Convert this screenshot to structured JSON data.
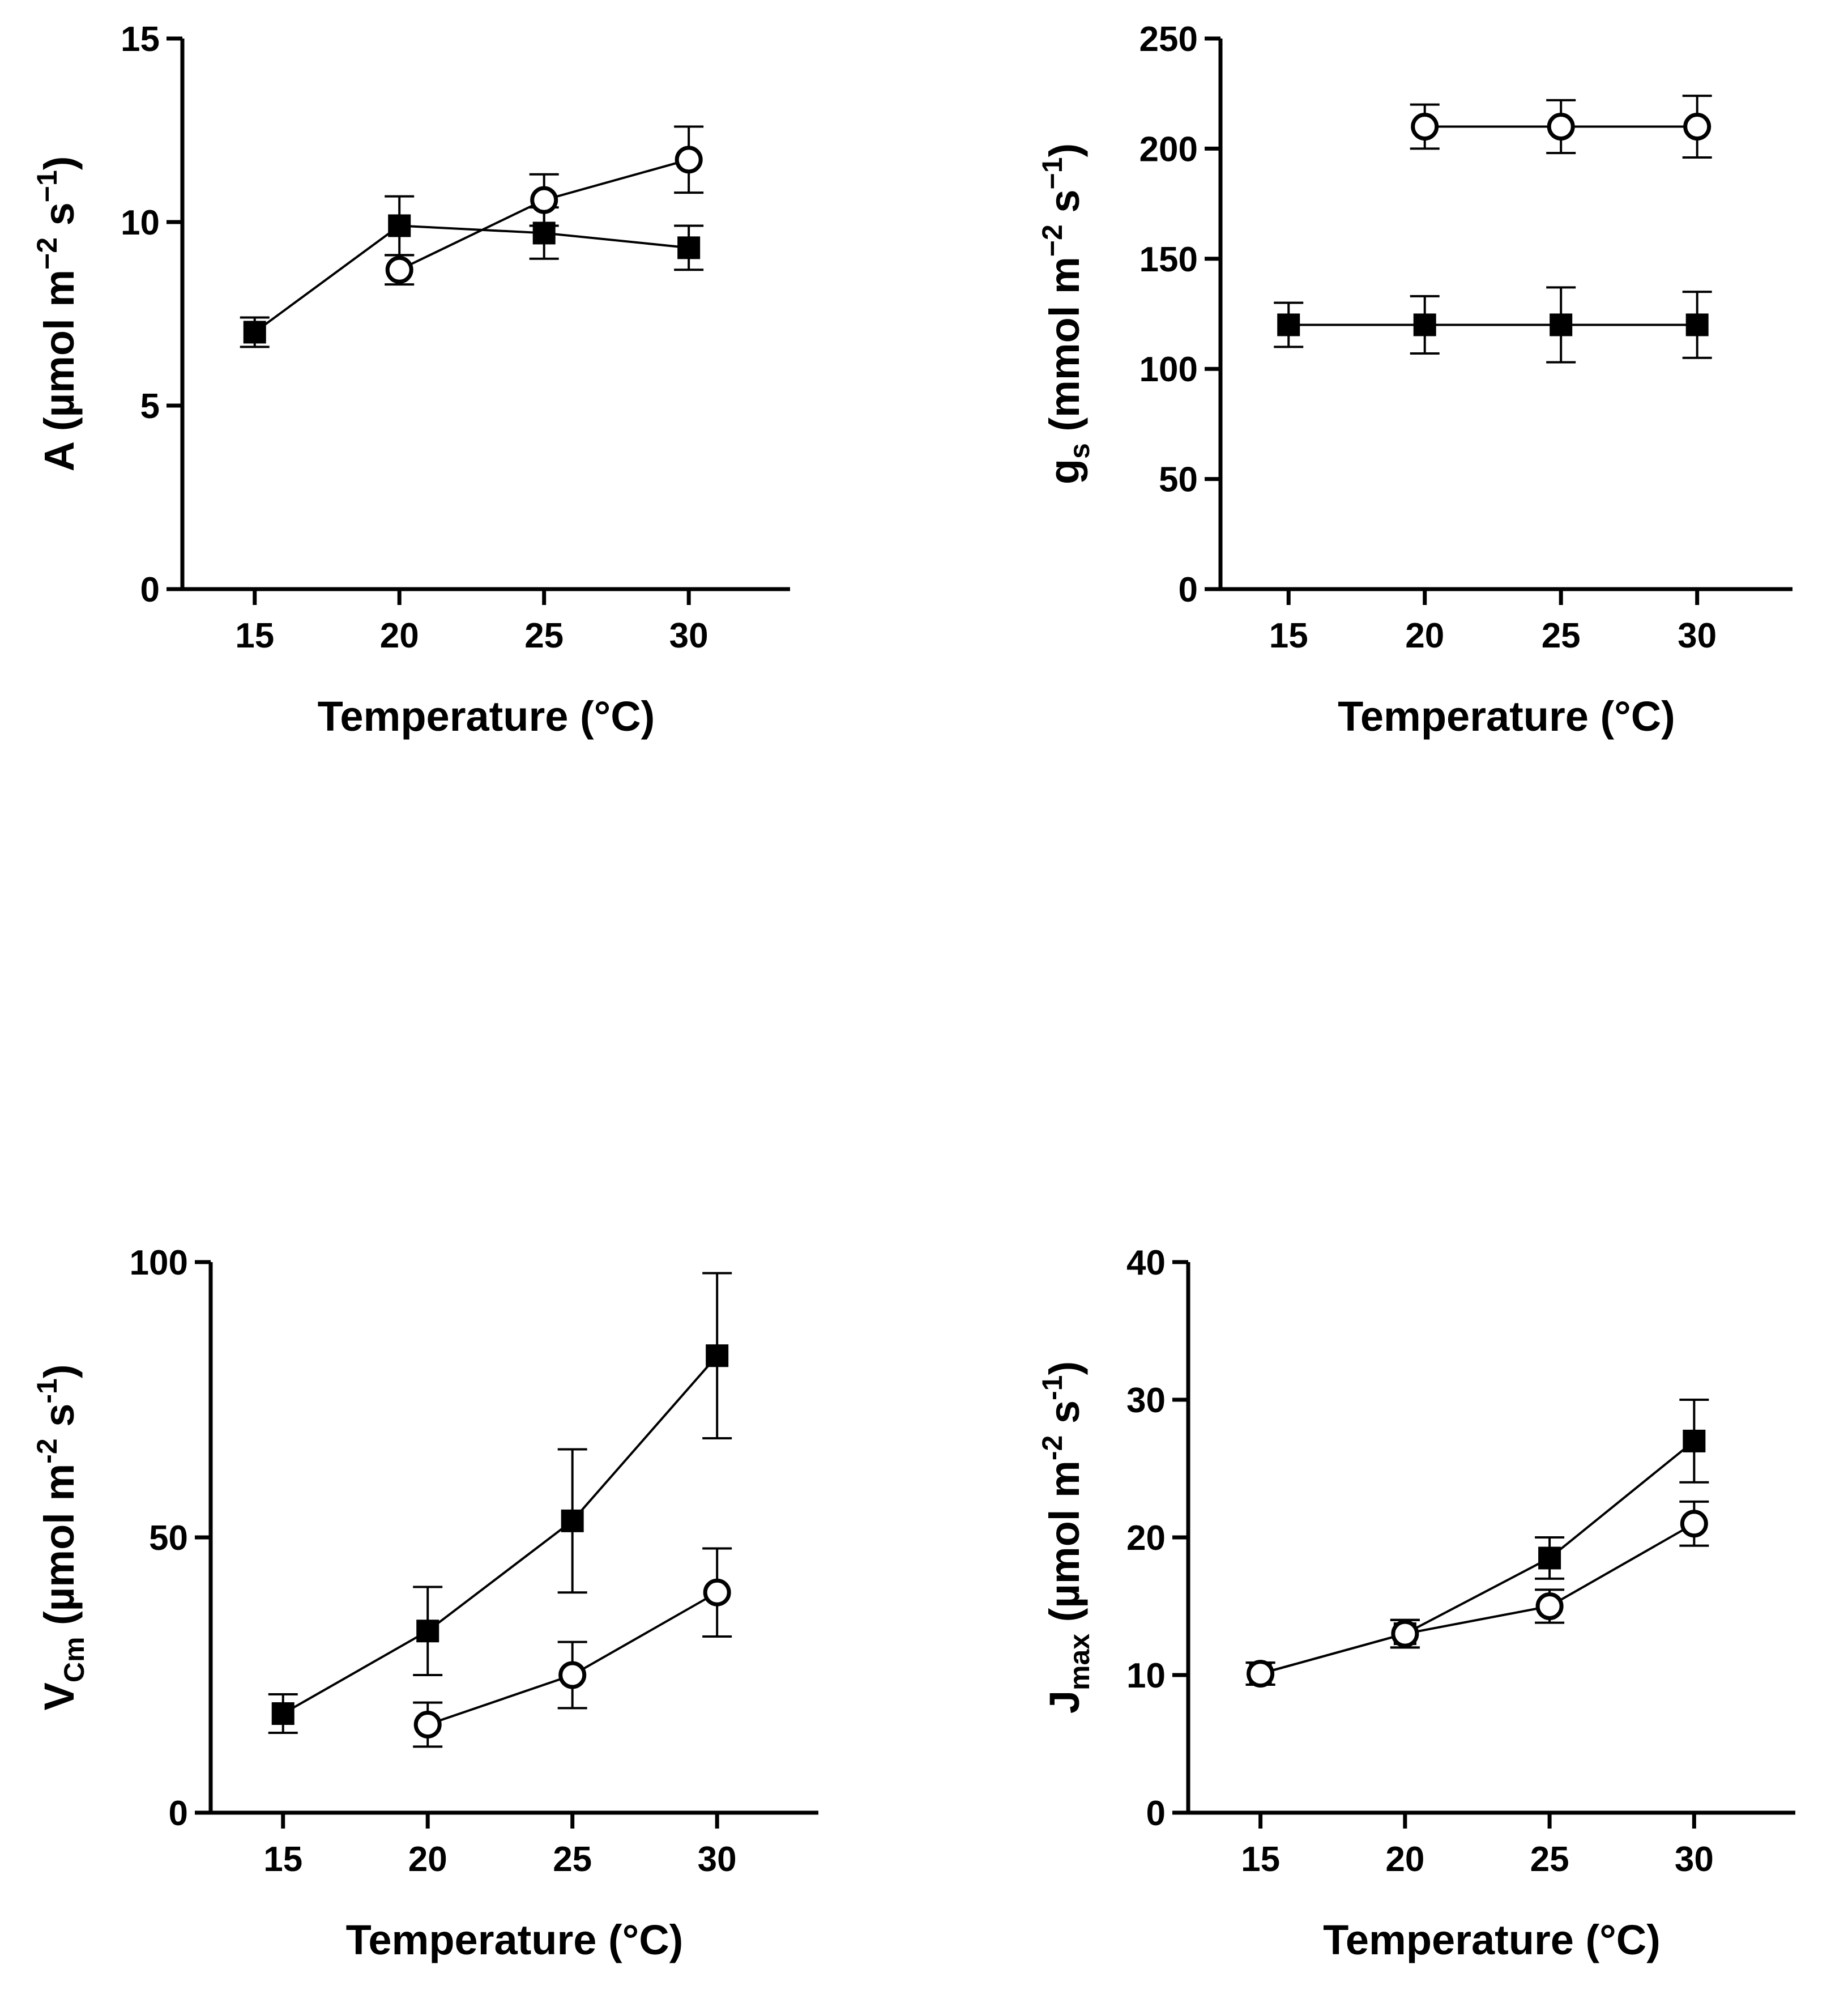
{
  "chart_data": [
    {
      "type": "scatter",
      "xlabel": "Temperature (°C)",
      "ylabel": "A (µmol m⁻² s⁻¹)",
      "ylabel_parts": [
        {
          "text": "A (µmol m",
          "style": "normal"
        },
        {
          "text": "−2",
          "style": "sup"
        },
        {
          "text": " s",
          "style": "normal"
        },
        {
          "text": "−1",
          "style": "sup"
        },
        {
          "text": ")",
          "style": "normal"
        }
      ],
      "xlim": [
        12.5,
        33.5
      ],
      "ylim": [
        0,
        15
      ],
      "xticks": [
        15,
        20,
        25,
        30
      ],
      "yticks": [
        0,
        5,
        10,
        15
      ],
      "series": [
        {
          "marker": "square-filled",
          "x": [
            15,
            20,
            25,
            30
          ],
          "y": [
            7.0,
            9.9,
            9.7,
            9.3
          ],
          "err": [
            0.4,
            0.8,
            0.7,
            0.6
          ]
        },
        {
          "marker": "circle-open",
          "x": [
            20,
            25,
            30
          ],
          "y": [
            8.7,
            10.6,
            11.7
          ],
          "err": [
            0.4,
            0.7,
            0.9
          ]
        }
      ]
    },
    {
      "type": "scatter",
      "xlabel": "Temperature (°C)",
      "ylabel": "gₛ (mmol m⁻² s⁻¹)",
      "ylabel_parts": [
        {
          "text": "g",
          "style": "normal"
        },
        {
          "text": "s",
          "style": "sub"
        },
        {
          "text": " (mmol m",
          "style": "normal"
        },
        {
          "text": "−2",
          "style": "sup"
        },
        {
          "text": " s",
          "style": "normal"
        },
        {
          "text": "−1",
          "style": "sup"
        },
        {
          "text": ")",
          "style": "normal"
        }
      ],
      "xlim": [
        12.5,
        33.5
      ],
      "ylim": [
        0,
        250
      ],
      "xticks": [
        15,
        20,
        25,
        30
      ],
      "yticks": [
        0,
        50,
        100,
        150,
        200,
        250
      ],
      "series": [
        {
          "marker": "square-filled",
          "x": [
            15,
            20,
            25,
            30
          ],
          "y": [
            120,
            120,
            120,
            120
          ],
          "err": [
            10,
            13,
            17,
            15
          ]
        },
        {
          "marker": "circle-open",
          "x": [
            20,
            25,
            30
          ],
          "y": [
            210,
            210,
            210
          ],
          "err": [
            10,
            12,
            14
          ]
        }
      ]
    },
    {
      "type": "scatter",
      "xlabel": "Temperature (°C)",
      "ylabel": "Vᴄₘ (µmol m⁻² s⁻¹)",
      "ylabel_parts": [
        {
          "text": "V",
          "style": "normal"
        },
        {
          "text": "Cm",
          "style": "sub"
        },
        {
          "text": " (µmol m",
          "style": "normal"
        },
        {
          "text": "-2",
          "style": "sup"
        },
        {
          "text": " s",
          "style": "normal"
        },
        {
          "text": "-1",
          "style": "sup"
        },
        {
          "text": ")",
          "style": "normal"
        }
      ],
      "xlim": [
        12.5,
        33.5
      ],
      "ylim": [
        0,
        100
      ],
      "xticks": [
        15,
        20,
        25,
        30
      ],
      "yticks": [
        0,
        50,
        100
      ],
      "series": [
        {
          "marker": "square-filled",
          "x": [
            15,
            20,
            25,
            30
          ],
          "y": [
            18,
            33,
            53,
            83
          ],
          "err": [
            3.5,
            8,
            13,
            15
          ]
        },
        {
          "marker": "circle-open",
          "x": [
            20,
            25,
            30
          ],
          "y": [
            16,
            25,
            40
          ],
          "err": [
            4,
            6,
            8
          ]
        }
      ]
    },
    {
      "type": "scatter",
      "xlabel": "Temperature (°C)",
      "ylabel": "Jₘₐₓ (µmol m⁻² s⁻¹)",
      "ylabel_parts": [
        {
          "text": "J",
          "style": "normal"
        },
        {
          "text": "max",
          "style": "sub"
        },
        {
          "text": " (µmol m",
          "style": "normal"
        },
        {
          "text": "-2",
          "style": "sup"
        },
        {
          "text": " s",
          "style": "normal"
        },
        {
          "text": "-1",
          "style": "sup"
        },
        {
          "text": ")",
          "style": "normal"
        }
      ],
      "xlim": [
        12.5,
        33.5
      ],
      "ylim": [
        0,
        40
      ],
      "xticks": [
        15,
        20,
        25,
        30
      ],
      "yticks": [
        0,
        10,
        20,
        30,
        40
      ],
      "series": [
        {
          "marker": "square-filled",
          "x": [
            15,
            20,
            25,
            30
          ],
          "y": [
            10.1,
            13,
            18.5,
            27
          ],
          "err": [
            0.8,
            1.0,
            1.5,
            3.0
          ]
        },
        {
          "marker": "circle-open",
          "x": [
            15,
            20,
            25,
            30
          ],
          "y": [
            10.1,
            13,
            15,
            21
          ],
          "err": [
            0.8,
            1.0,
            1.2,
            1.6
          ]
        }
      ]
    }
  ]
}
